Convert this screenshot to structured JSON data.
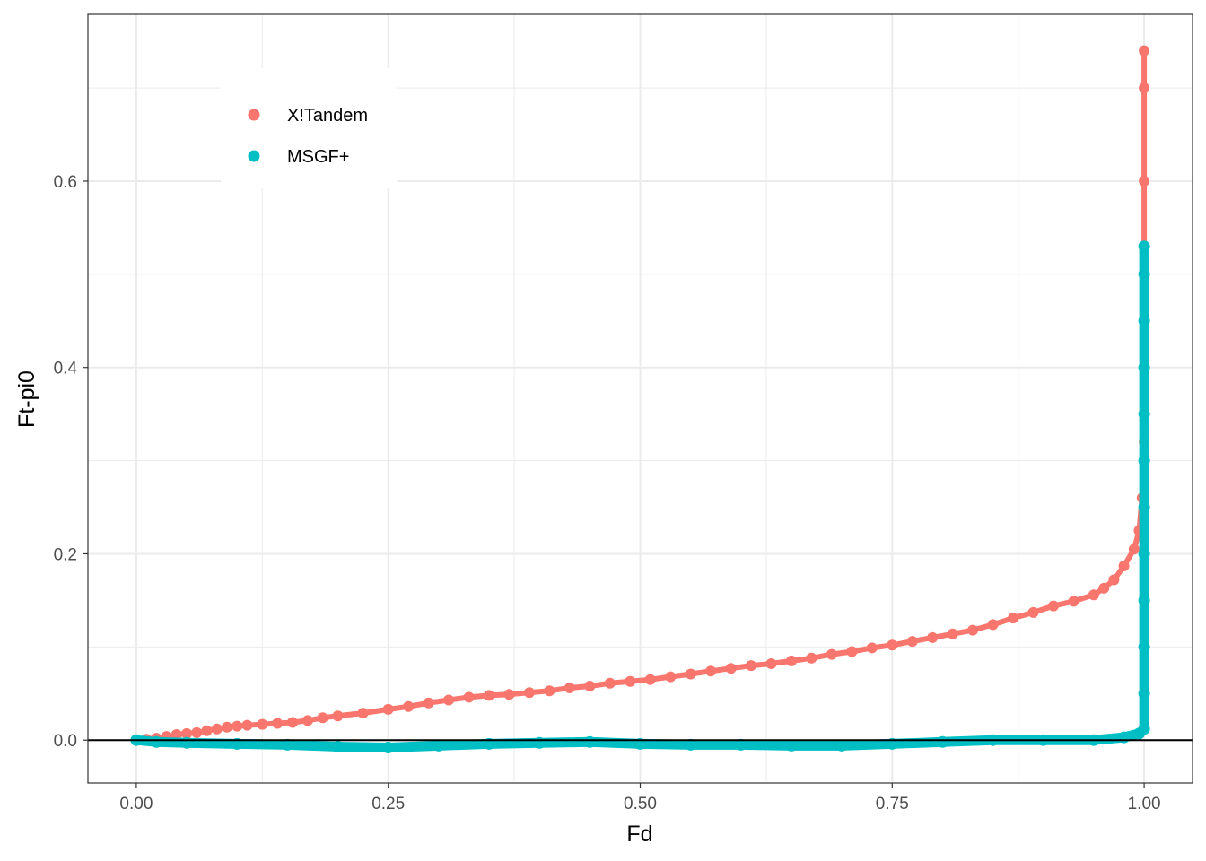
{
  "chart_data": {
    "type": "scatter",
    "title": "",
    "xlabel": "Fd",
    "ylabel": "Ft-pi0",
    "xlim": [
      -0.048,
      1.048
    ],
    "ylim": [
      -0.046,
      0.779
    ],
    "x_ticks": [
      0.0,
      0.25,
      0.5,
      0.75,
      1.0
    ],
    "x_tick_labels": [
      "0.00",
      "0.25",
      "0.50",
      "0.75",
      "1.00"
    ],
    "y_ticks": [
      0.0,
      0.2,
      0.4,
      0.6
    ],
    "y_tick_labels": [
      "0.0",
      "0.2",
      "0.4",
      "0.6"
    ],
    "grid": true,
    "hline": 0,
    "legend_position": "top-left",
    "series": [
      {
        "name": "X!Tandem",
        "color": "#F8766D",
        "points": [
          [
            0.0,
            0.0
          ],
          [
            0.01,
            0.001
          ],
          [
            0.02,
            0.002
          ],
          [
            0.03,
            0.004
          ],
          [
            0.04,
            0.006
          ],
          [
            0.05,
            0.007
          ],
          [
            0.06,
            0.008
          ],
          [
            0.07,
            0.01
          ],
          [
            0.08,
            0.012
          ],
          [
            0.09,
            0.014
          ],
          [
            0.1,
            0.015
          ],
          [
            0.11,
            0.016
          ],
          [
            0.125,
            0.017
          ],
          [
            0.14,
            0.018
          ],
          [
            0.155,
            0.019
          ],
          [
            0.17,
            0.021
          ],
          [
            0.185,
            0.024
          ],
          [
            0.2,
            0.026
          ],
          [
            0.225,
            0.029
          ],
          [
            0.25,
            0.033
          ],
          [
            0.27,
            0.036
          ],
          [
            0.29,
            0.04
          ],
          [
            0.31,
            0.043
          ],
          [
            0.33,
            0.046
          ],
          [
            0.35,
            0.048
          ],
          [
            0.37,
            0.049
          ],
          [
            0.39,
            0.051
          ],
          [
            0.41,
            0.053
          ],
          [
            0.43,
            0.056
          ],
          [
            0.45,
            0.058
          ],
          [
            0.47,
            0.061
          ],
          [
            0.49,
            0.063
          ],
          [
            0.51,
            0.065
          ],
          [
            0.53,
            0.068
          ],
          [
            0.55,
            0.071
          ],
          [
            0.57,
            0.074
          ],
          [
            0.59,
            0.077
          ],
          [
            0.61,
            0.08
          ],
          [
            0.63,
            0.082
          ],
          [
            0.65,
            0.085
          ],
          [
            0.67,
            0.088
          ],
          [
            0.69,
            0.092
          ],
          [
            0.71,
            0.095
          ],
          [
            0.73,
            0.099
          ],
          [
            0.75,
            0.102
          ],
          [
            0.77,
            0.106
          ],
          [
            0.79,
            0.11
          ],
          [
            0.81,
            0.114
          ],
          [
            0.83,
            0.118
          ],
          [
            0.85,
            0.124
          ],
          [
            0.87,
            0.131
          ],
          [
            0.89,
            0.137
          ],
          [
            0.91,
            0.144
          ],
          [
            0.93,
            0.149
          ],
          [
            0.95,
            0.156
          ],
          [
            0.96,
            0.163
          ],
          [
            0.97,
            0.172
          ],
          [
            0.98,
            0.187
          ],
          [
            0.99,
            0.205
          ],
          [
            0.995,
            0.225
          ],
          [
            0.998,
            0.26
          ],
          [
            1.0,
            0.32
          ],
          [
            1.0,
            0.4
          ],
          [
            1.0,
            0.5
          ],
          [
            1.0,
            0.6
          ],
          [
            1.0,
            0.7
          ],
          [
            1.0,
            0.74
          ]
        ]
      },
      {
        "name": "MSGF+",
        "color": "#00BFC4",
        "points": [
          [
            0.0,
            0.0
          ],
          [
            0.02,
            -0.002
          ],
          [
            0.05,
            -0.003
          ],
          [
            0.1,
            -0.004
          ],
          [
            0.15,
            -0.005
          ],
          [
            0.2,
            -0.007
          ],
          [
            0.25,
            -0.008
          ],
          [
            0.3,
            -0.006
          ],
          [
            0.35,
            -0.004
          ],
          [
            0.4,
            -0.003
          ],
          [
            0.45,
            -0.002
          ],
          [
            0.5,
            -0.004
          ],
          [
            0.55,
            -0.005
          ],
          [
            0.6,
            -0.005
          ],
          [
            0.65,
            -0.006
          ],
          [
            0.7,
            -0.006
          ],
          [
            0.75,
            -0.004
          ],
          [
            0.8,
            -0.002
          ],
          [
            0.85,
            0.0
          ],
          [
            0.9,
            0.0
          ],
          [
            0.95,
            0.0
          ],
          [
            0.98,
            0.003
          ],
          [
            0.995,
            0.007
          ],
          [
            1.0,
            0.012
          ],
          [
            1.0,
            0.05
          ],
          [
            1.0,
            0.1
          ],
          [
            1.0,
            0.15
          ],
          [
            1.0,
            0.2
          ],
          [
            1.0,
            0.25
          ],
          [
            1.0,
            0.3
          ],
          [
            1.0,
            0.35
          ],
          [
            1.0,
            0.4
          ],
          [
            1.0,
            0.45
          ],
          [
            1.0,
            0.5
          ],
          [
            1.0,
            0.53
          ]
        ]
      }
    ]
  }
}
